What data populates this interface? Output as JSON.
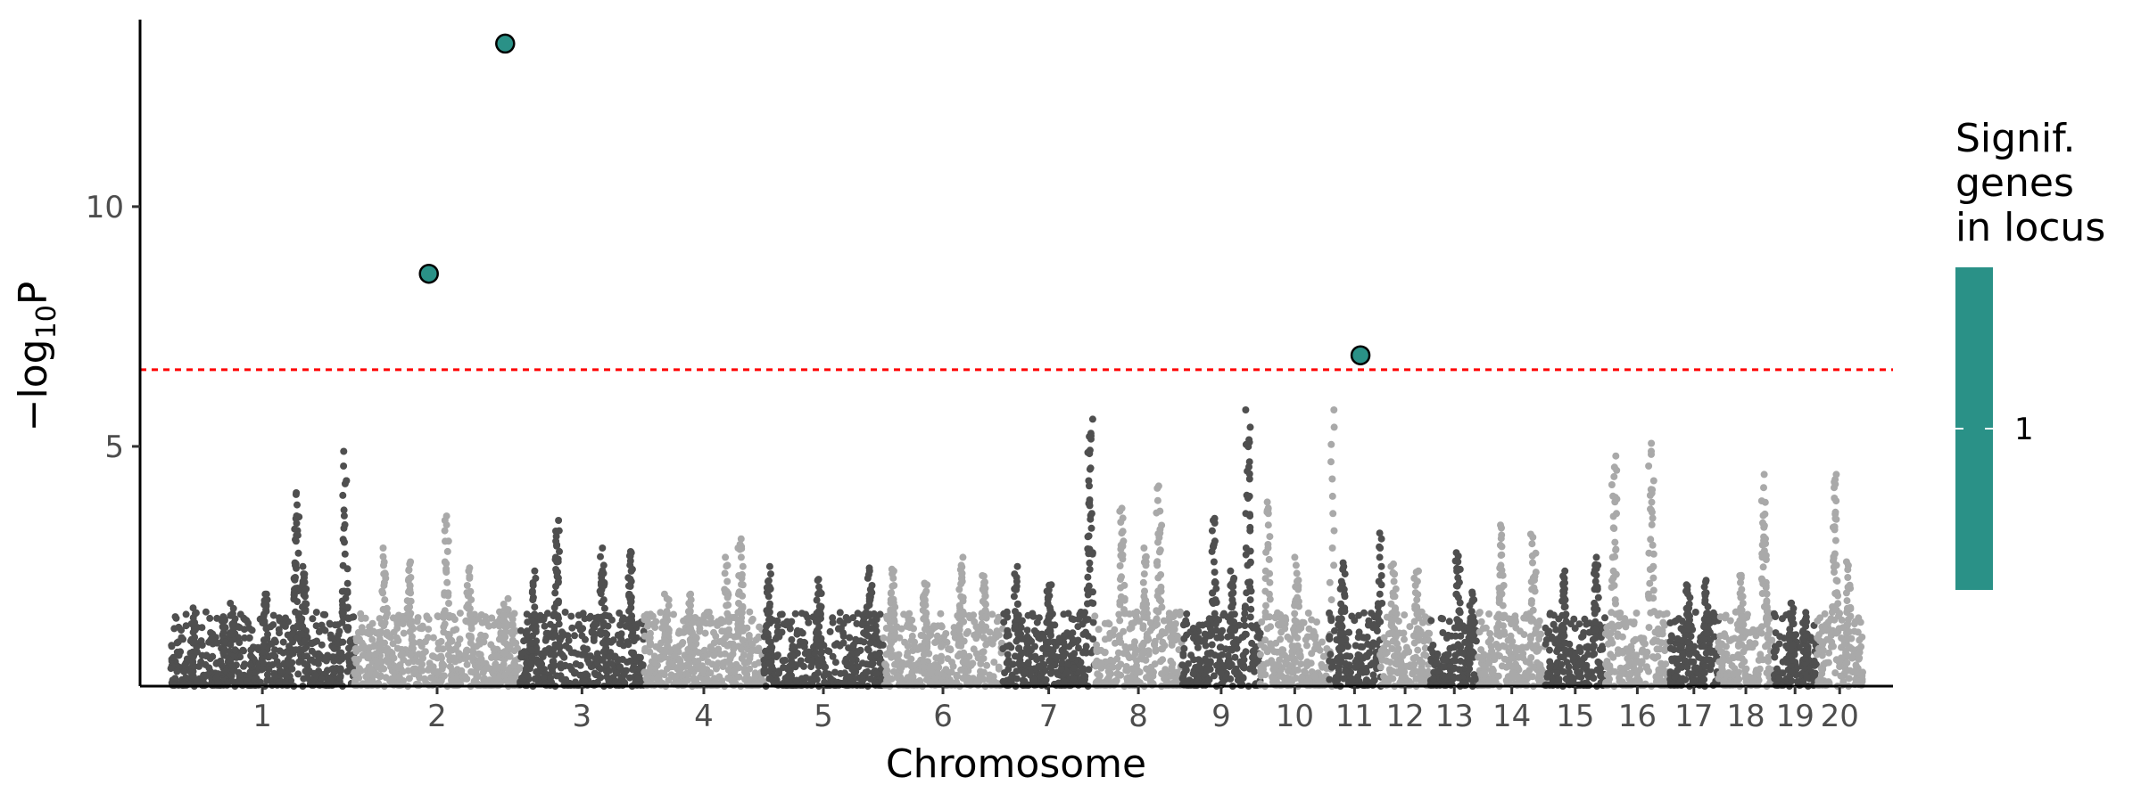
{
  "chart_data": {
    "type": "scatter",
    "subtype": "manhattan",
    "xlabel": "Chromosome",
    "ylabel_main": "−log",
    "ylabel_sub": "10",
    "ylabel_tail": "P",
    "yticks": [
      5,
      10
    ],
    "ylim": [
      0,
      13.9
    ],
    "threshold": 6.6,
    "threshold_color": "#ff0000",
    "colors": {
      "dark": "#4f4f4f",
      "light": "#a9a9a9",
      "highlight": "#2a9187",
      "highlight_border": "#000000"
    },
    "chromosomes": [
      {
        "label": "1",
        "start": 0,
        "end": 200,
        "peaks": [
          [
            27,
            1.7
          ],
          [
            68,
            1.8
          ],
          [
            103,
            2.0
          ],
          [
            137,
            4.2
          ],
          [
            145,
            2.6
          ],
          [
            190,
            5.1
          ]
        ]
      },
      {
        "label": "2",
        "start": 200,
        "end": 380,
        "peaks": [
          [
            33,
            3.0
          ],
          [
            60,
            2.7
          ],
          [
            100,
            3.6
          ],
          [
            125,
            2.5
          ],
          [
            165,
            1.9
          ]
        ]
      },
      {
        "label": "3",
        "start": 380,
        "end": 515,
        "peaks": [
          [
            15,
            2.5
          ],
          [
            40,
            3.6
          ],
          [
            90,
            3.0
          ],
          [
            120,
            2.9
          ]
        ]
      },
      {
        "label": "4",
        "start": 515,
        "end": 645,
        "peaks": [
          [
            25,
            2.0
          ],
          [
            50,
            2.0
          ],
          [
            90,
            2.8
          ],
          [
            105,
            3.2
          ]
        ]
      },
      {
        "label": "5",
        "start": 645,
        "end": 775,
        "peaks": [
          [
            5,
            2.6
          ],
          [
            60,
            2.3
          ],
          [
            115,
            2.5
          ]
        ]
      },
      {
        "label": "6",
        "start": 775,
        "end": 905,
        "peaks": [
          [
            10,
            2.5
          ],
          [
            45,
            2.2
          ],
          [
            85,
            2.8
          ],
          [
            110,
            2.4
          ]
        ]
      },
      {
        "label": "7",
        "start": 905,
        "end": 1005,
        "peaks": [
          [
            15,
            2.6
          ],
          [
            50,
            2.2
          ],
          [
            95,
            5.8
          ]
        ]
      },
      {
        "label": "8",
        "start": 1005,
        "end": 1100,
        "peaks": [
          [
            30,
            3.8
          ],
          [
            55,
            3.0
          ],
          [
            70,
            4.3
          ]
        ]
      },
      {
        "label": "9",
        "start": 1100,
        "end": 1185,
        "peaks": [
          [
            35,
            3.6
          ],
          [
            55,
            2.5
          ],
          [
            72,
            6.0
          ]
        ]
      },
      {
        "label": "10",
        "start": 1185,
        "end": 1260,
        "peaks": [
          [
            8,
            4.0
          ],
          [
            40,
            2.8
          ],
          [
            78,
            6.0
          ]
        ]
      },
      {
        "label": "11",
        "start": 1260,
        "end": 1315,
        "peaks": [
          [
            15,
            2.6
          ],
          [
            55,
            3.2
          ]
        ]
      },
      {
        "label": "12",
        "start": 1315,
        "end": 1370,
        "peaks": [
          [
            15,
            2.6
          ],
          [
            40,
            2.5
          ]
        ]
      },
      {
        "label": "13",
        "start": 1370,
        "end": 1422,
        "peaks": [
          [
            30,
            2.9
          ],
          [
            45,
            2.0
          ]
        ]
      },
      {
        "label": "14",
        "start": 1422,
        "end": 1495,
        "peaks": [
          [
            25,
            3.5
          ],
          [
            60,
            3.3
          ]
        ]
      },
      {
        "label": "15",
        "start": 1495,
        "end": 1560,
        "peaks": [
          [
            20,
            2.5
          ],
          [
            55,
            2.8
          ]
        ]
      },
      {
        "label": "16",
        "start": 1560,
        "end": 1630,
        "peaks": [
          [
            10,
            5.0
          ],
          [
            50,
            5.1
          ]
        ]
      },
      {
        "label": "17",
        "start": 1630,
        "end": 1683,
        "peaks": [
          [
            20,
            2.2
          ],
          [
            40,
            2.3
          ]
        ]
      },
      {
        "label": "18",
        "start": 1683,
        "end": 1743,
        "peaks": [
          [
            25,
            2.4
          ],
          [
            50,
            4.6
          ]
        ]
      },
      {
        "label": "19",
        "start": 1743,
        "end": 1790,
        "peaks": [
          [
            20,
            1.8
          ],
          [
            35,
            1.6
          ]
        ]
      },
      {
        "label": "20",
        "start": 1790,
        "end": 1840,
        "peaks": [
          [
            20,
            4.6
          ],
          [
            35,
            2.7
          ]
        ]
      }
    ],
    "significant_points": [
      {
        "x": 281,
        "y": 8.6
      },
      {
        "x": 364,
        "y": 13.4
      },
      {
        "x": 1294,
        "y": 6.9
      }
    ],
    "xlim": [
      -33,
      1873
    ],
    "legend": {
      "title_lines": [
        "Signif.",
        "genes",
        "in locus"
      ],
      "labels": [
        "1"
      ],
      "color": "#2a9187"
    }
  }
}
